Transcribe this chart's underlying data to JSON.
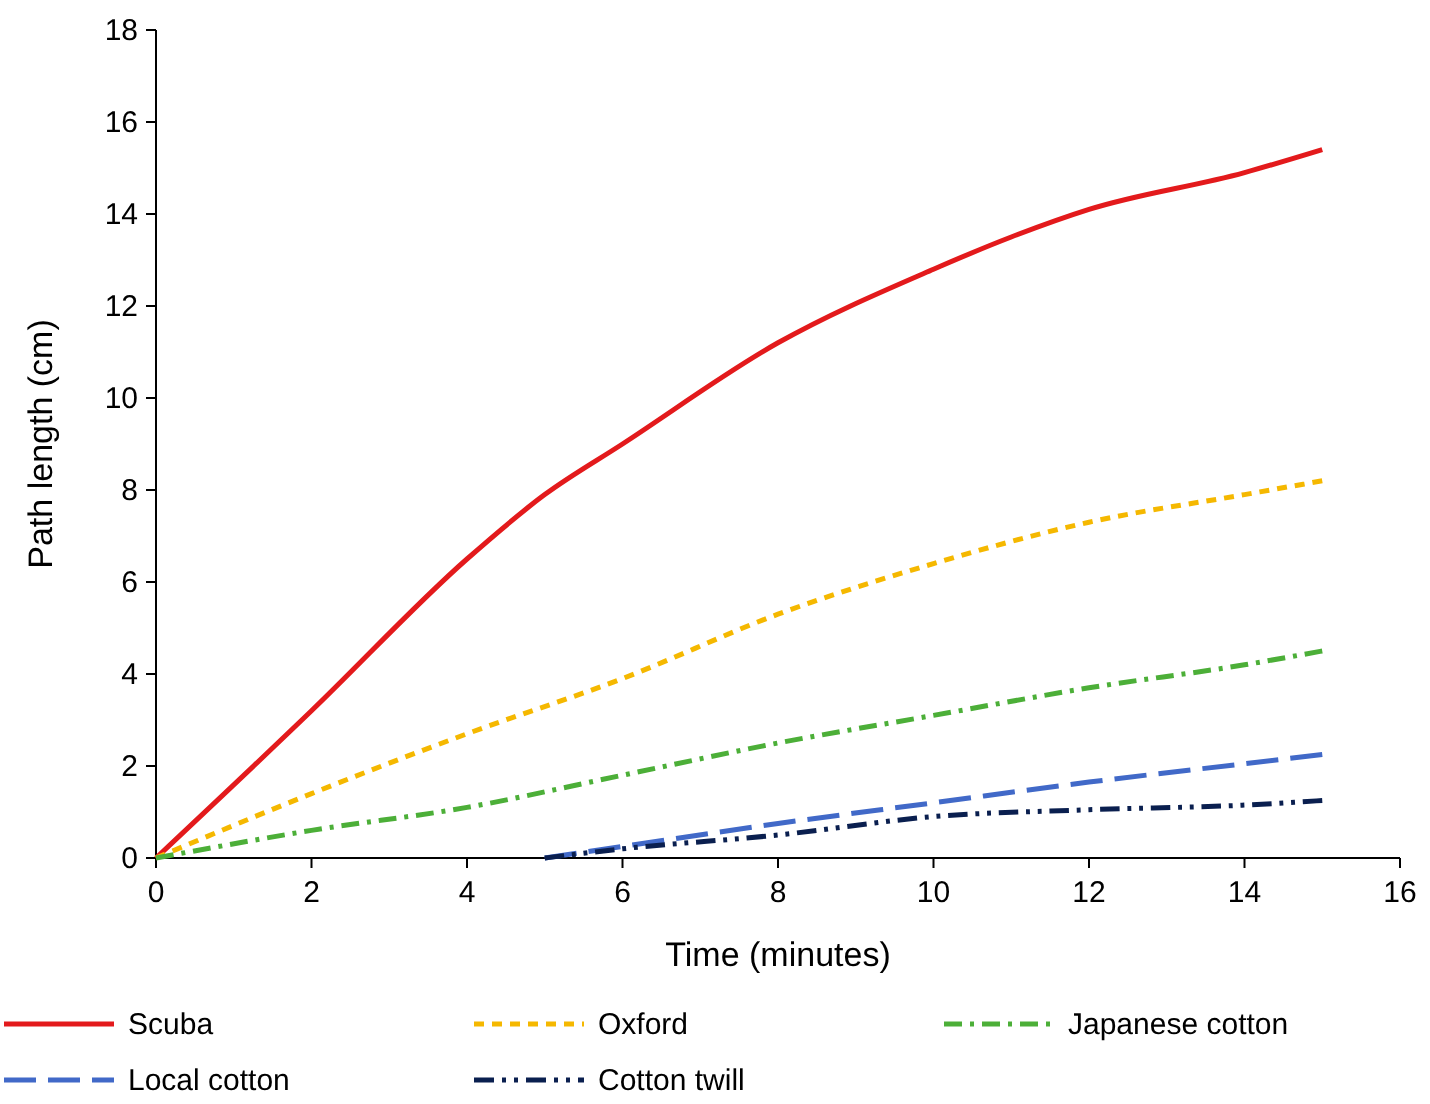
{
  "chart_data": {
    "type": "line",
    "xlabel": "Time (minutes)",
    "ylabel": "Path length (cm)",
    "xlim": [
      0,
      16
    ],
    "ylim": [
      0,
      18
    ],
    "xticks": [
      0,
      2,
      4,
      6,
      8,
      10,
      12,
      14,
      16
    ],
    "yticks": [
      0,
      2,
      4,
      6,
      8,
      10,
      12,
      14,
      16,
      18
    ],
    "grid": false,
    "legend": "bottom",
    "marker": "none",
    "series": [
      {
        "name": "Scuba",
        "color": "#e31a1c",
        "line_style": "solid",
        "x": [
          0,
          2,
          4,
          5,
          6,
          8,
          10,
          11,
          12,
          14,
          15
        ],
        "values": [
          0,
          3.2,
          6.5,
          7.9,
          9.0,
          11.2,
          12.8,
          13.5,
          14.1,
          14.9,
          15.4
        ]
      },
      {
        "name": "Oxford",
        "color": "#f5b800",
        "line_style": "dashed",
        "x": [
          0,
          2,
          4,
          6,
          8,
          10,
          12,
          14,
          15
        ],
        "values": [
          0,
          1.4,
          2.7,
          3.9,
          5.3,
          6.4,
          7.3,
          7.9,
          8.2
        ]
      },
      {
        "name": "Japanese cotton",
        "color": "#4caf38",
        "line_style": "dashdot",
        "x": [
          0,
          2,
          4,
          6,
          8,
          10,
          12,
          14,
          15
        ],
        "values": [
          0,
          0.6,
          1.1,
          1.8,
          2.5,
          3.1,
          3.7,
          4.2,
          4.5
        ]
      },
      {
        "name": "Local cotton",
        "color": "#4169c8",
        "line_style": "longdash",
        "x": [
          5,
          6,
          8,
          10,
          12,
          14,
          15
        ],
        "values": [
          0,
          0.25,
          0.75,
          1.2,
          1.65,
          2.05,
          2.25
        ]
      },
      {
        "name": "Cotton twill",
        "color": "#0a1f4f",
        "line_style": "dashdotdot",
        "x": [
          5,
          6,
          8,
          10,
          12,
          14,
          15
        ],
        "values": [
          0,
          0.2,
          0.5,
          0.9,
          1.05,
          1.15,
          1.25
        ]
      }
    ]
  }
}
